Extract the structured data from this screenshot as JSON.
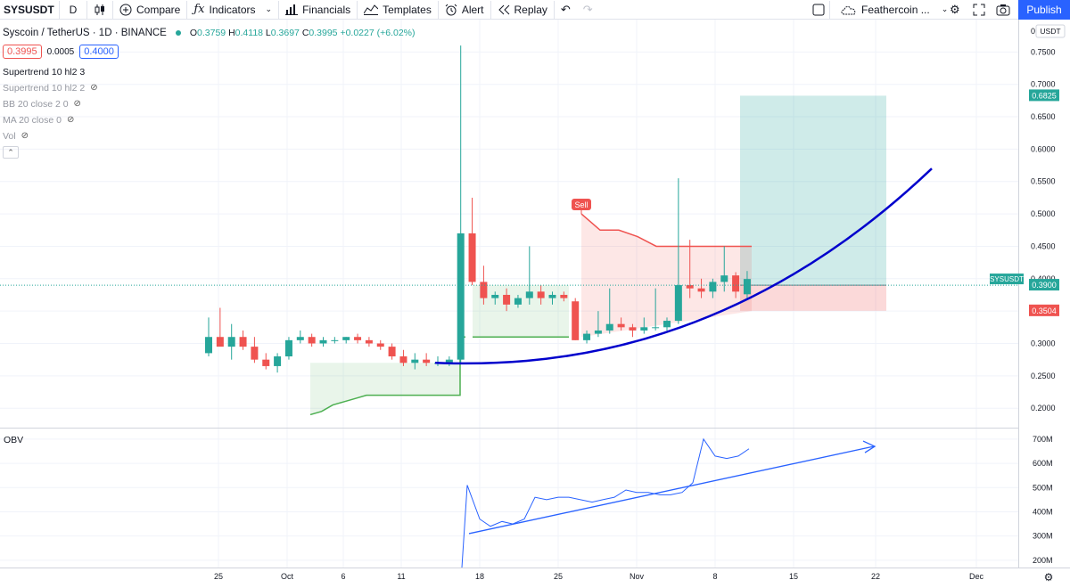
{
  "toolbar": {
    "symbol": "SYSUSDT",
    "interval": "D",
    "compare": "Compare",
    "indicators": "Indicators",
    "financials": "Financials",
    "templates": "Templates",
    "alert": "Alert",
    "replay": "Replay",
    "layout_name": "Feathercoin ...",
    "publish": "Publish"
  },
  "legend": {
    "title": "Syscoin / TetherUS · 1D · BINANCE",
    "o_label": "O",
    "o": "0.3759",
    "h_label": "H",
    "h": "0.4118",
    "l_label": "L",
    "l": "0.3697",
    "c_label": "C",
    "c": "0.3995",
    "change": "+0.0227 (+6.02%)",
    "bid": "0.3995",
    "spread": "0.0005",
    "ask": "0.4000"
  },
  "indicators": [
    {
      "label": "Supertrend 10 hl2 3",
      "hidden": false
    },
    {
      "label": "Supertrend 10 hl2 2",
      "hidden": true
    },
    {
      "label": "BB 20 close 2 0",
      "hidden": true
    },
    {
      "label": "MA 20 close 0",
      "hidden": true
    },
    {
      "label": "Vol",
      "hidden": true
    }
  ],
  "obv_label": "OBV",
  "price_axis": {
    "currency": "USDT",
    "ticks": [
      "0.7500",
      "0.7000",
      "0.6500",
      "0.6000",
      "0.5500",
      "0.5000",
      "0.4500",
      "0.4000",
      "0.3500",
      "0.3000",
      "0.2500",
      "0.2000"
    ],
    "top_partial": "0.8000",
    "badges": [
      {
        "text": "0.6825",
        "color": "#26a69a"
      },
      {
        "text": "0.3900",
        "color": "#26a69a"
      },
      {
        "text": "0.3504",
        "color": "#ef5350"
      }
    ],
    "symbol_badge": "SYSUSDT"
  },
  "obv_axis": {
    "ticks": [
      "700M",
      "600M",
      "500M",
      "400M",
      "300M",
      "200M"
    ]
  },
  "time_axis": {
    "labels": [
      "25",
      "Oct",
      "6",
      "11",
      "18",
      "25",
      "Nov",
      "8",
      "15",
      "22",
      "Dec"
    ]
  },
  "chart_data": [
    {
      "type": "candlestick",
      "title": "Syscoin / TetherUS · 1D · BINANCE",
      "ylim": [
        0.17,
        0.8
      ],
      "series": [
        {
          "name": "SYSUSDT",
          "candles": [
            [
              0.285,
              0.34,
              0.28,
              0.31
            ],
            [
              0.31,
              0.355,
              0.3,
              0.295
            ],
            [
              0.295,
              0.33,
              0.275,
              0.31
            ],
            [
              0.31,
              0.32,
              0.29,
              0.295
            ],
            [
              0.295,
              0.31,
              0.27,
              0.275
            ],
            [
              0.275,
              0.285,
              0.26,
              0.265
            ],
            [
              0.265,
              0.285,
              0.255,
              0.28
            ],
            [
              0.28,
              0.31,
              0.275,
              0.305
            ],
            [
              0.305,
              0.32,
              0.3,
              0.31
            ],
            [
              0.31,
              0.315,
              0.295,
              0.3
            ],
            [
              0.3,
              0.31,
              0.295,
              0.305
            ],
            [
              0.305,
              0.31,
              0.3,
              0.305
            ],
            [
              0.305,
              0.31,
              0.3,
              0.31
            ],
            [
              0.31,
              0.315,
              0.3,
              0.305
            ],
            [
              0.305,
              0.31,
              0.295,
              0.3
            ],
            [
              0.3,
              0.305,
              0.29,
              0.295
            ],
            [
              0.295,
              0.3,
              0.275,
              0.28
            ],
            [
              0.28,
              0.29,
              0.265,
              0.27
            ],
            [
              0.27,
              0.285,
              0.26,
              0.275
            ],
            [
              0.275,
              0.285,
              0.265,
              0.27
            ],
            [
              0.27,
              0.28,
              0.265,
              0.27
            ],
            [
              0.27,
              0.28,
              0.265,
              0.275
            ],
            [
              0.275,
              0.76,
              0.27,
              0.47
            ],
            [
              0.47,
              0.525,
              0.39,
              0.395
            ],
            [
              0.395,
              0.42,
              0.36,
              0.37
            ],
            [
              0.37,
              0.38,
              0.36,
              0.375
            ],
            [
              0.375,
              0.385,
              0.35,
              0.36
            ],
            [
              0.36,
              0.375,
              0.355,
              0.37
            ],
            [
              0.37,
              0.45,
              0.36,
              0.38
            ],
            [
              0.38,
              0.39,
              0.36,
              0.37
            ],
            [
              0.37,
              0.38,
              0.36,
              0.375
            ],
            [
              0.375,
              0.38,
              0.365,
              0.37
            ],
            [
              0.365,
              0.37,
              0.305,
              0.305
            ],
            [
              0.305,
              0.32,
              0.3,
              0.315
            ],
            [
              0.315,
              0.35,
              0.31,
              0.32
            ],
            [
              0.32,
              0.385,
              0.315,
              0.33
            ],
            [
              0.33,
              0.34,
              0.32,
              0.325
            ],
            [
              0.325,
              0.33,
              0.31,
              0.32
            ],
            [
              0.32,
              0.34,
              0.315,
              0.325
            ],
            [
              0.325,
              0.385,
              0.32,
              0.325
            ],
            [
              0.325,
              0.34,
              0.32,
              0.335
            ],
            [
              0.335,
              0.555,
              0.33,
              0.39
            ],
            [
              0.39,
              0.46,
              0.37,
              0.385
            ],
            [
              0.385,
              0.4,
              0.37,
              0.38
            ],
            [
              0.38,
              0.4,
              0.37,
              0.395
            ],
            [
              0.395,
              0.45,
              0.38,
              0.405
            ],
            [
              0.405,
              0.41,
              0.37,
              0.38
            ],
            [
              0.3759,
              0.4118,
              0.3697,
              0.3995
            ]
          ]
        }
      ],
      "supertrend": {
        "name": "Supertrend 10 hl2 3",
        "up_leg": [
          0.19,
          0.195,
          0.205,
          0.21,
          0.215,
          0.22,
          0.22,
          0.22,
          0.22,
          0.22,
          0.22,
          0.22,
          0.22,
          0.22
        ],
        "mid_leg": 0.31,
        "down_leg": [
          0.5,
          0.475,
          0.475,
          0.465,
          0.45,
          0.45,
          0.45,
          0.45,
          0.45,
          0.45
        ],
        "signal": "Sell"
      },
      "position": {
        "type": "short",
        "target": 0.6825,
        "entry": 0.39,
        "stop": 0.3504
      },
      "trendline": {
        "shape": "parabolic",
        "from_price": 0.27,
        "to_price": 0.57
      }
    },
    {
      "type": "line",
      "name": "OBV",
      "ylim": [
        170,
        740
      ],
      "unit": "M",
      "values": [
        170,
        510,
        370,
        340,
        360,
        350,
        370,
        460,
        450,
        460,
        460,
        450,
        440,
        450,
        460,
        490,
        480,
        480,
        470,
        470,
        480,
        520,
        700,
        630,
        620,
        630,
        660,
        650,
        660
      ],
      "trendline": {
        "from": 310,
        "to": 670
      }
    }
  ]
}
